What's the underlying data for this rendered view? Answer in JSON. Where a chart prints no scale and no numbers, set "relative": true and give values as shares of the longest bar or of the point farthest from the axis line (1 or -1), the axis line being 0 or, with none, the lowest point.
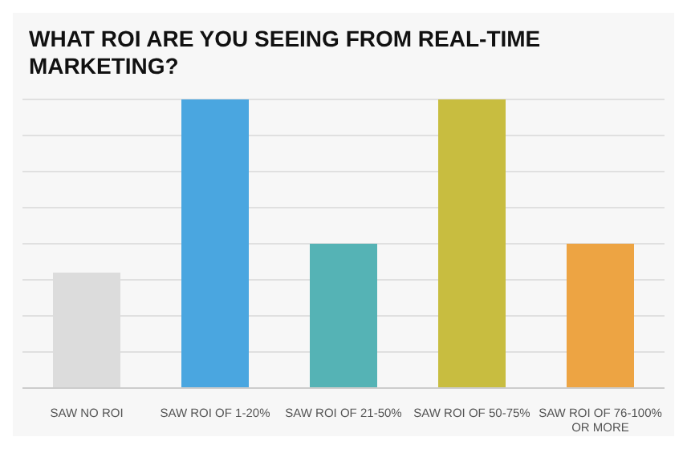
{
  "chart_data": {
    "type": "bar",
    "title": "WHAT ROI ARE YOU SEEING FROM REAL-TIME MARKETING?",
    "relative": true,
    "grid": "y",
    "categories": [
      "SAW NO ROI",
      "SAW ROI OF 1-20%",
      "SAW ROI OF 21-50%",
      "SAW ROI OF 50-75%",
      "SAW ROI OF 76-100% OR MORE"
    ],
    "values": [
      0.4,
      1,
      0.5,
      1,
      0.5
    ],
    "colors": [
      "#dcdcdc",
      "#4aa6e0",
      "#55b3b5",
      "#c8bd40",
      "#eda443"
    ]
  }
}
